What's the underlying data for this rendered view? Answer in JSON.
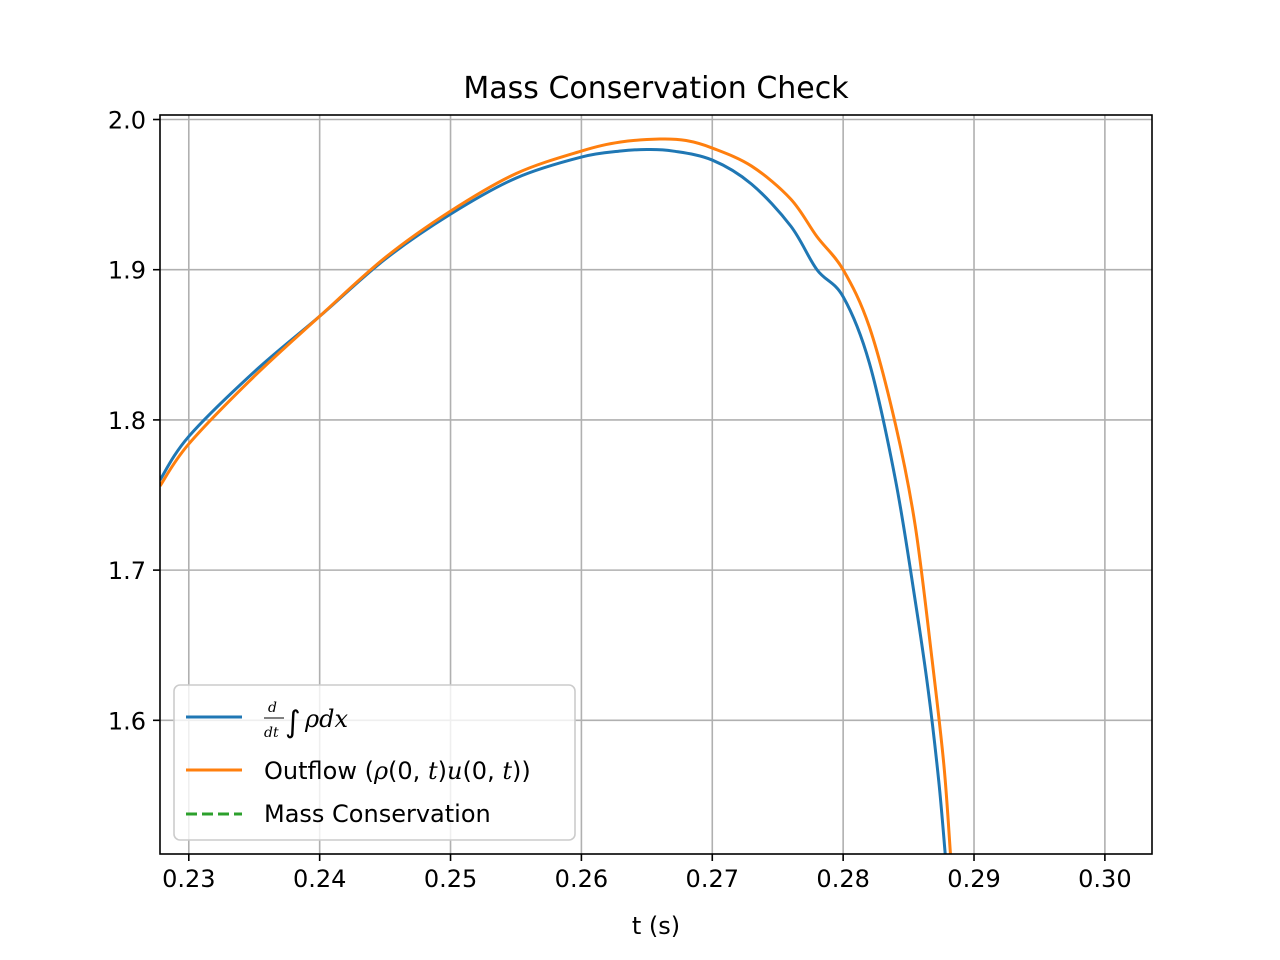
{
  "chart_data": {
    "type": "line",
    "title": "Mass Conservation Check",
    "xlabel": "t (s)",
    "ylabel": "",
    "xlim": [
      0.2278,
      0.3036
    ],
    "ylim": [
      1.511,
      2.003
    ],
    "grid": true,
    "legend_placement": "lower-left",
    "xticks": [
      "0.23",
      "0.24",
      "0.25",
      "0.26",
      "0.27",
      "0.28",
      "0.29",
      "0.30"
    ],
    "yticks": [
      "1.6",
      "1.7",
      "1.8",
      "1.9",
      "2.0"
    ],
    "series": [
      {
        "name": "d/dt ∫ρdx",
        "color": "#1f77b4",
        "style": "solid",
        "x": [
          0.2278,
          0.23,
          0.235,
          0.24,
          0.245,
          0.25,
          0.255,
          0.26,
          0.263,
          0.265,
          0.267,
          0.27,
          0.273,
          0.276,
          0.278,
          0.28,
          0.282,
          0.284,
          0.2855,
          0.2865,
          0.2873,
          0.2878
        ],
        "y": [
          1.76,
          1.789,
          1.832,
          1.869,
          1.907,
          1.937,
          1.961,
          1.975,
          1.979,
          1.98,
          1.979,
          1.973,
          1.957,
          1.929,
          1.9,
          1.882,
          1.838,
          1.76,
          1.68,
          1.62,
          1.56,
          1.511
        ]
      },
      {
        "name": "Outflow (ρ(0,t)u(0,t))",
        "color": "#ff7f0e",
        "style": "solid",
        "x": [
          0.2278,
          0.23,
          0.235,
          0.24,
          0.245,
          0.25,
          0.255,
          0.26,
          0.263,
          0.266,
          0.268,
          0.27,
          0.273,
          0.276,
          0.278,
          0.28,
          0.282,
          0.284,
          0.2855,
          0.2868,
          0.2877,
          0.2882
        ],
        "y": [
          1.756,
          1.784,
          1.829,
          1.869,
          1.908,
          1.939,
          1.964,
          1.979,
          1.985,
          1.987,
          1.986,
          1.981,
          1.969,
          1.947,
          1.922,
          1.9,
          1.862,
          1.797,
          1.73,
          1.64,
          1.57,
          1.511
        ]
      },
      {
        "name": "Mass Conservation",
        "color": "#2ca02c",
        "style": "dashed",
        "x": [],
        "y": []
      }
    ]
  }
}
